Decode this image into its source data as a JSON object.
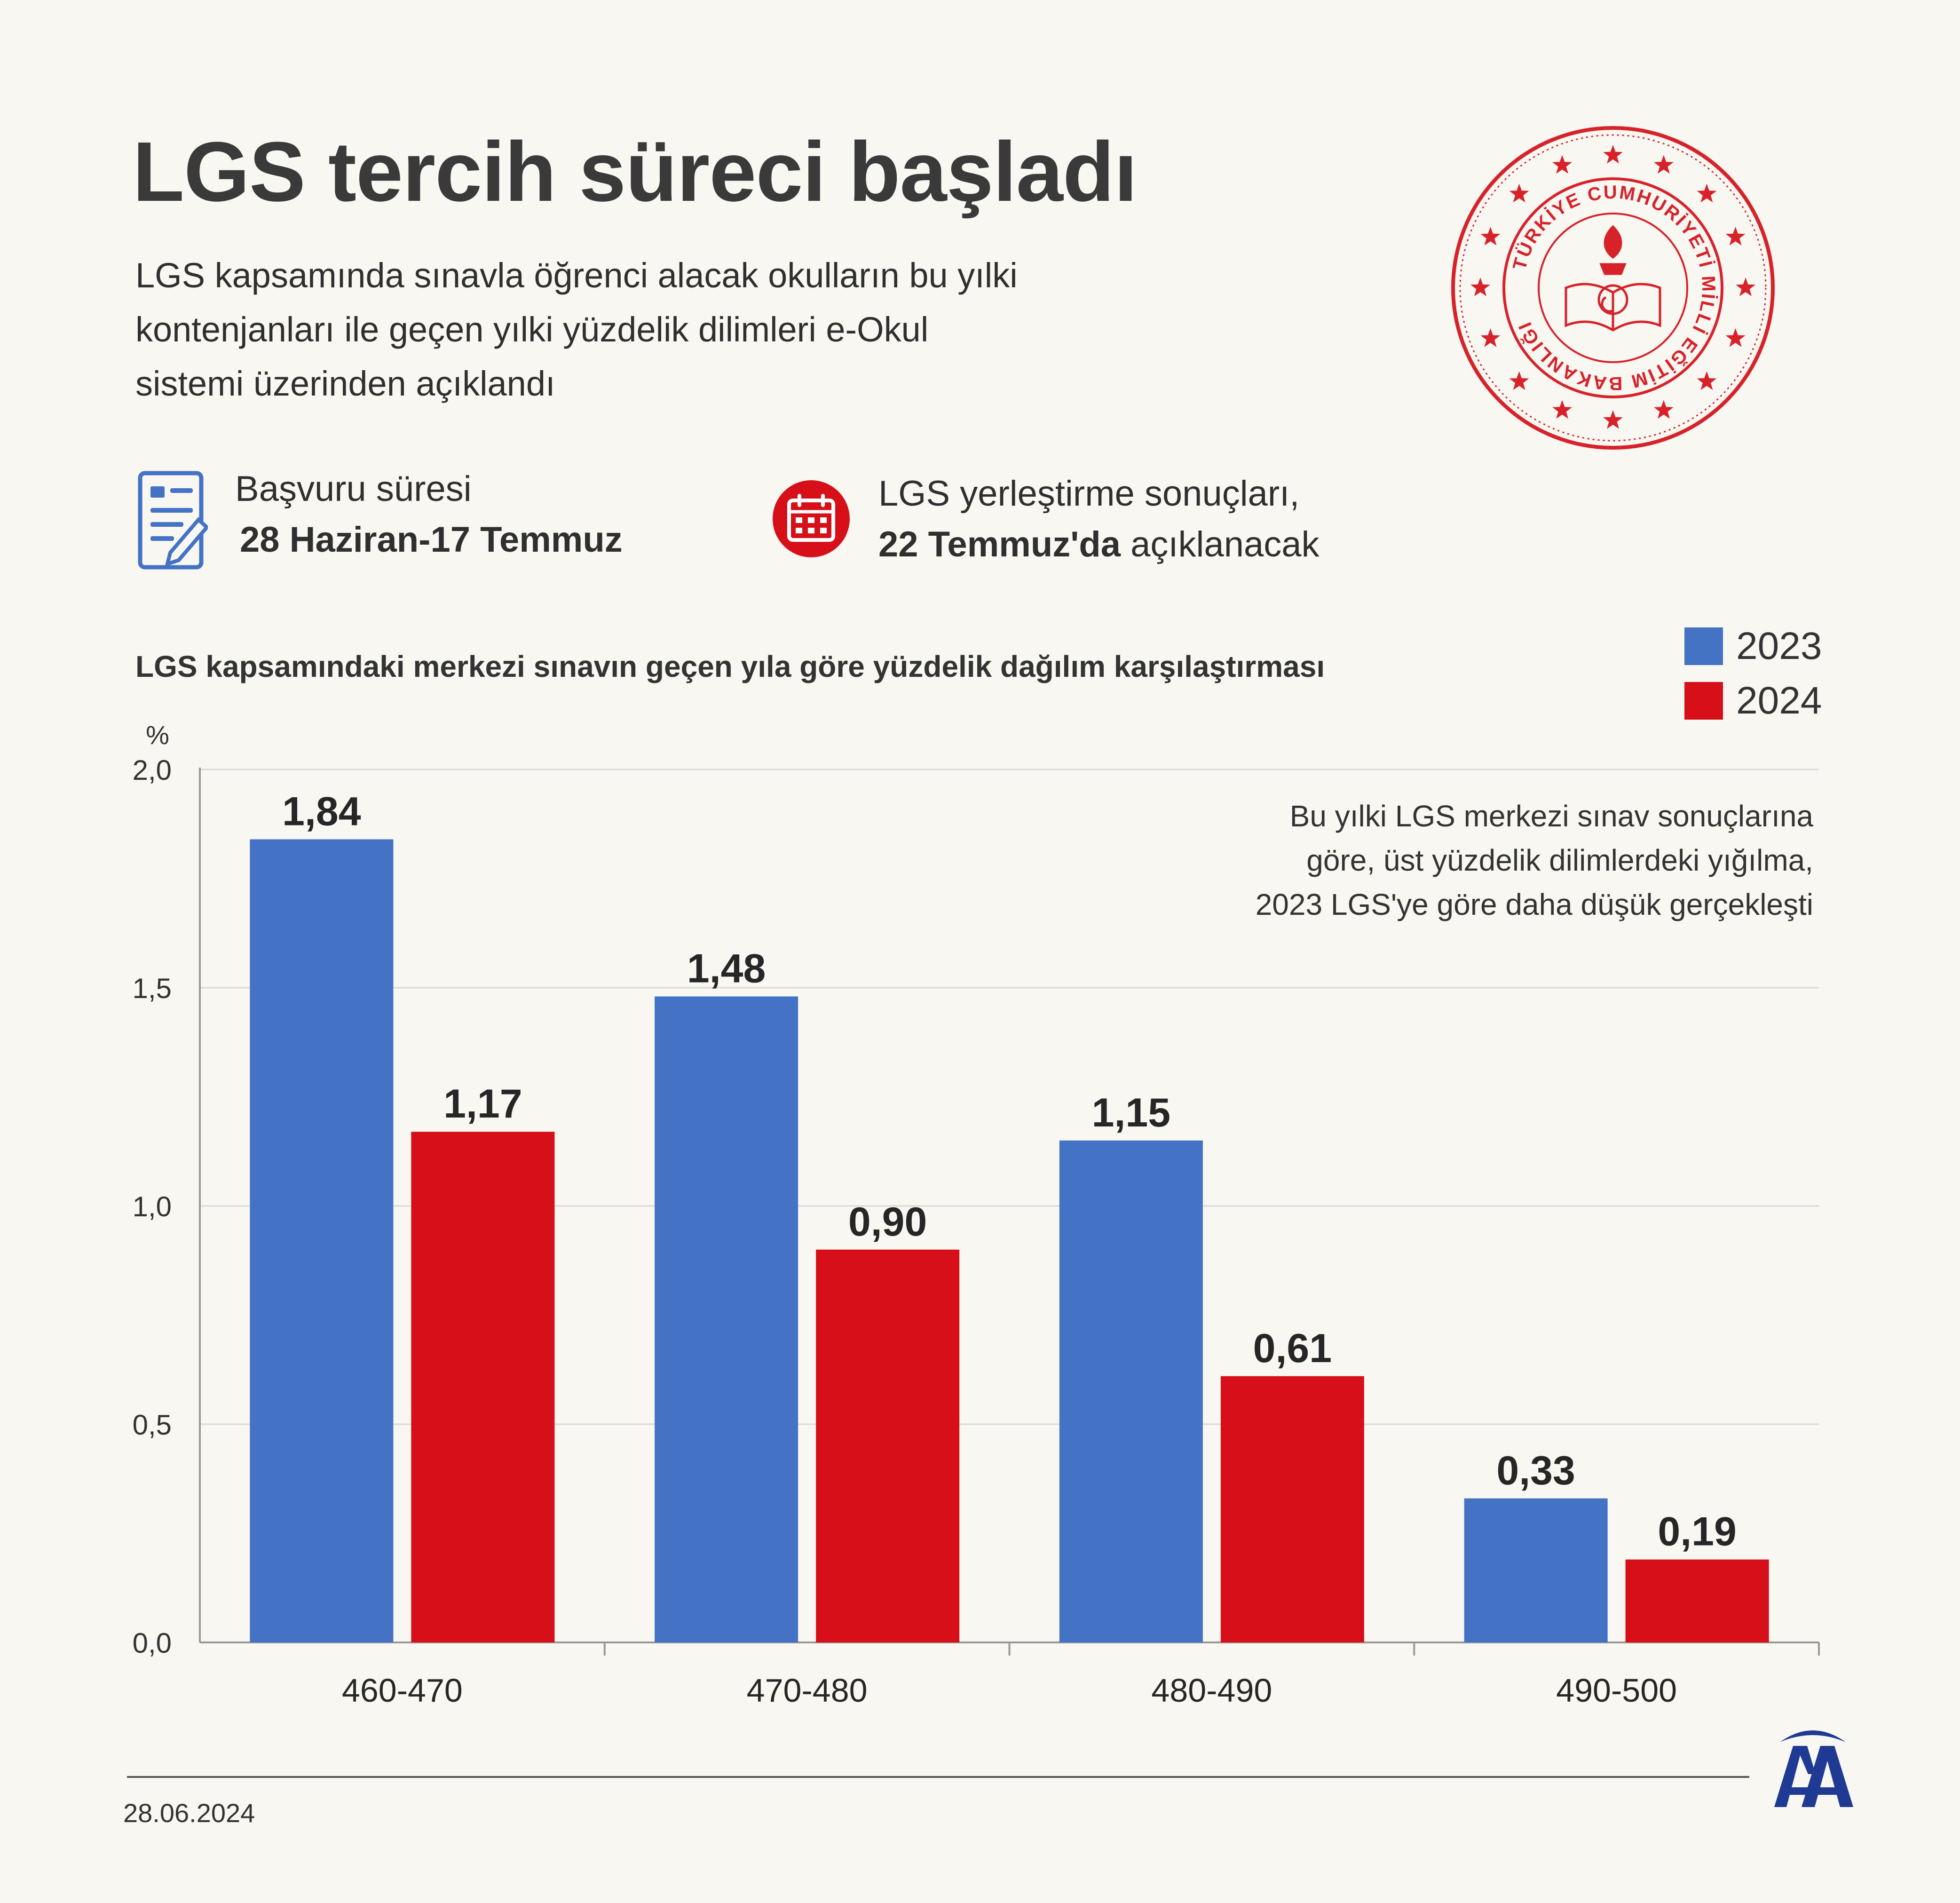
{
  "title": "LGS tercih süreci başladı",
  "subtitle_lines": [
    "LGS kapsamında sınavla öğrenci alacak okulların bu yılki",
    "kontenjanları ile geçen yılki yüzdelik dilimleri e-Okul",
    "sistemi üzerinden açıklandı"
  ],
  "logo_text": "TÜRKİYE CUMHURİYETİ MİLLİ EĞİTİM BAKANLIĞI",
  "info": {
    "application_label": "Başvuru süresi",
    "application_dates": "28 Haziran-17 Temmuz",
    "results_label": "LGS yerleştirme sonuçları,",
    "results_date": "22 Temmuz'da",
    "results_suffix": " açıklanacak"
  },
  "icons": [
    "document-edit-icon",
    "calendar-icon",
    "aa-logo-icon"
  ],
  "colors": {
    "series_2023": "#4472c4",
    "series_2024": "#d60f18",
    "logo_red": "#d8222a",
    "aa_blue": "#1f3a93"
  },
  "note_lines": [
    "Bu yılki LGS merkezi sınav sonuçlarına",
    "göre, üst yüzdelik dilimlerdeki yığılma,",
    "2023 LGS'ye göre daha düşük gerçekleşti"
  ],
  "footer": {
    "date": "28.06.2024"
  },
  "chart_data": {
    "type": "bar",
    "title": "LGS kapsamındaki merkezi sınavın geçen yıla göre yüzdelik dağılım karşılaştırması",
    "ylabel": "%",
    "xlabel": "",
    "categories": [
      "460-470",
      "470-480",
      "480-490",
      "490-500"
    ],
    "series": [
      {
        "name": "2023",
        "values": [
          1.84,
          1.48,
          1.15,
          0.33
        ],
        "labels": [
          "1,84",
          "1,48",
          "1,15",
          "0,33"
        ]
      },
      {
        "name": "2024",
        "values": [
          1.17,
          0.9,
          0.61,
          0.19
        ],
        "labels": [
          "1,17",
          "0,90",
          "0,61",
          "0,19"
        ]
      }
    ],
    "ylim": [
      0,
      2.0
    ],
    "yticks": [
      0,
      0.5,
      1.0,
      1.5,
      2.0
    ],
    "ytick_labels": [
      "0,0",
      "0,5",
      "1,0",
      "1,5",
      "2,0"
    ],
    "grid": true,
    "legend_position": "top-right"
  }
}
